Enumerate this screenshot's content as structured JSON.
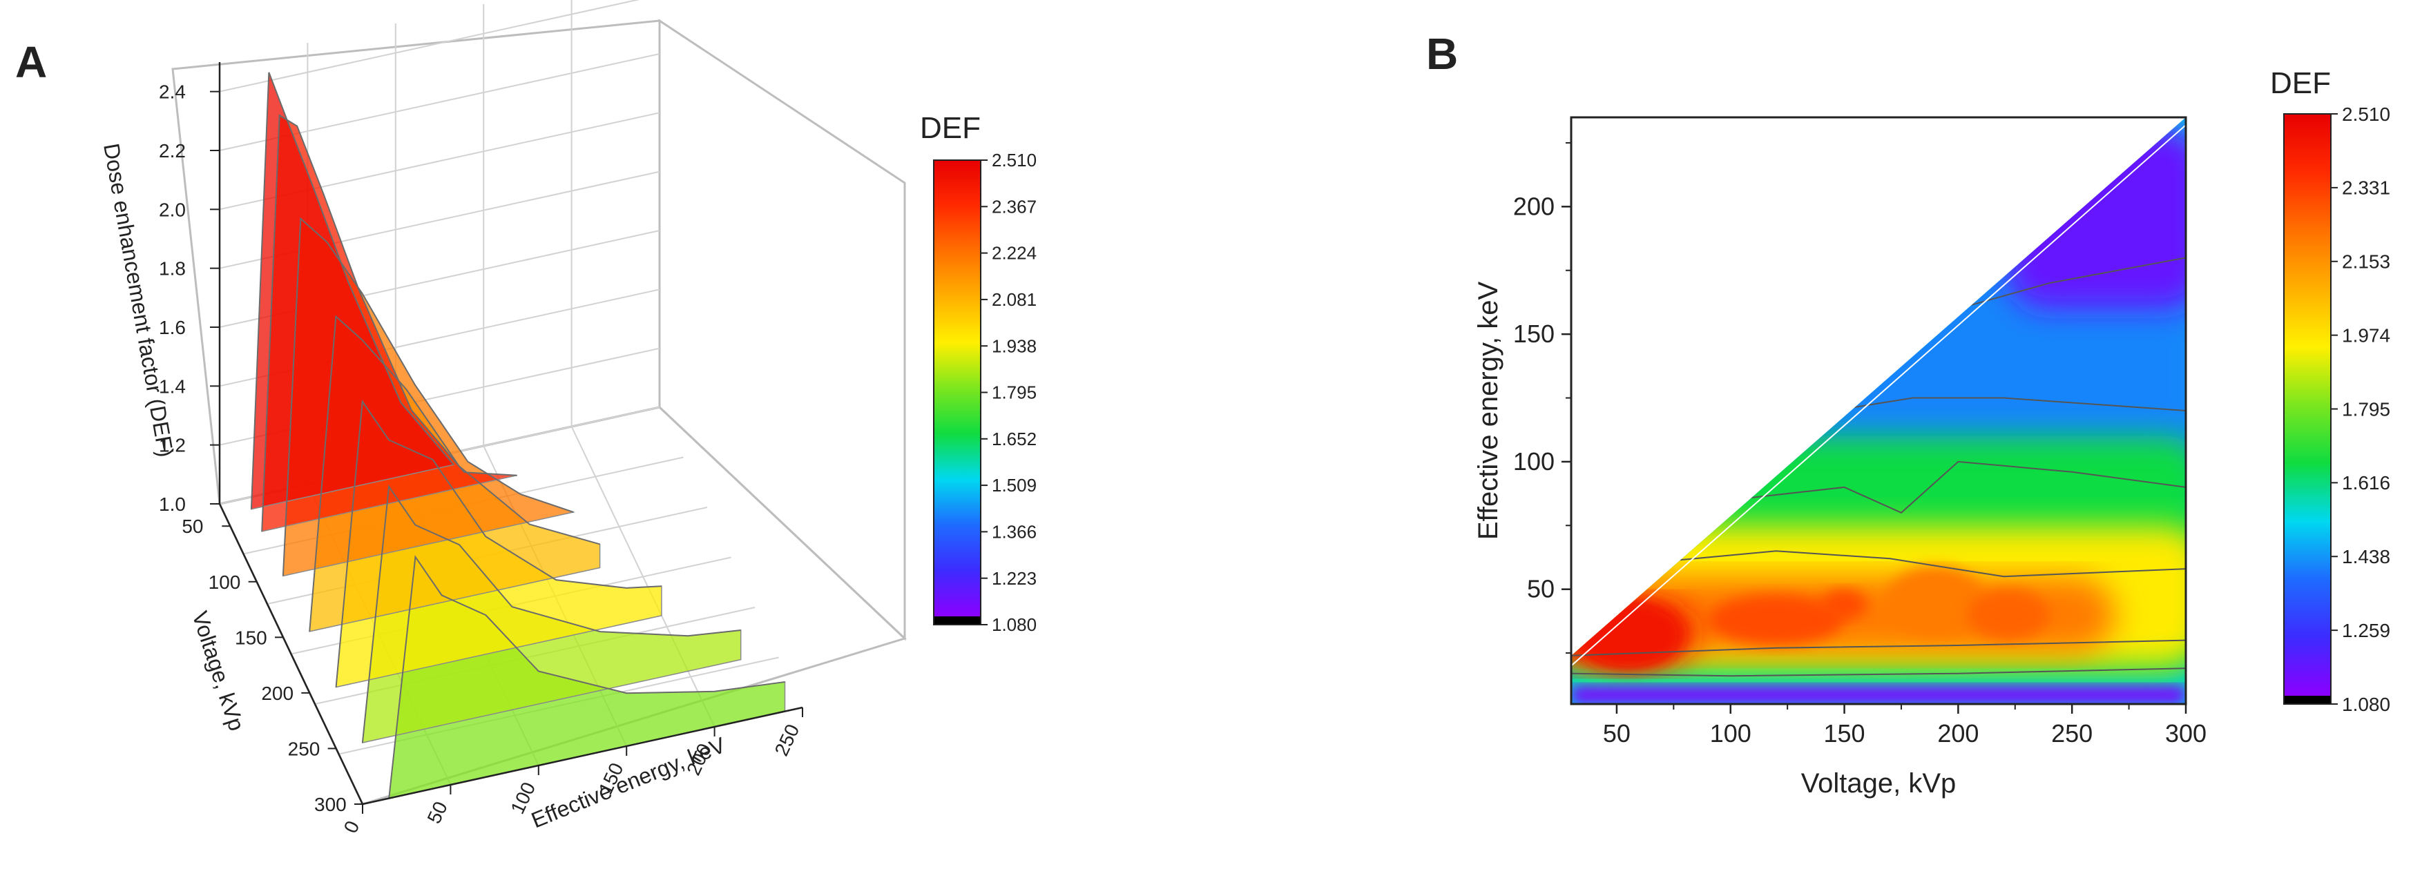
{
  "colors": {
    "text": "#222222",
    "axis": "#222222",
    "grid": "#c8c8c8",
    "contour": "#555555",
    "colormap": [
      "#8B00FF",
      "#3D2BFF",
      "#1E6BFF",
      "#00D8F0",
      "#10DC40",
      "#7CE61E",
      "#FFF000",
      "#FFB000",
      "#FF7000",
      "#FF2A00",
      "#E80000"
    ],
    "under": "#000000"
  },
  "chart_data": [
    {
      "panel": "A",
      "type": "surface3d",
      "title": "",
      "zlabel": "Dose enhancement factor (DEF)",
      "xlabel": "Effective energy, keV",
      "ylabel": "Voltage, kVp",
      "z_ticks": [
        "1.0",
        "1.2",
        "1.4",
        "1.6",
        "1.8",
        "2.0",
        "2.2",
        "2.4"
      ],
      "x_ticks": [
        "0",
        "50",
        "100",
        "150",
        "200",
        "250"
      ],
      "y_ticks": [
        "50",
        "100",
        "150",
        "200",
        "250",
        "300"
      ],
      "zlim": [
        1.0,
        2.5
      ],
      "xlim": [
        0,
        250
      ],
      "ylim": [
        30,
        300
      ],
      "surface_ridges": [
        {
          "voltage": 40,
          "energy": [
            15,
            25,
            35,
            50,
            70,
            100,
            130
          ],
          "def": [
            1.0,
            2.47,
            2.3,
            2.05,
            1.7,
            1.25,
            1.0
          ]
        },
        {
          "voltage": 60,
          "energy": [
            15,
            25,
            35,
            50,
            70,
            100,
            130,
            160
          ],
          "def": [
            1.0,
            2.4,
            2.35,
            2.1,
            1.75,
            1.3,
            1.05,
            1.0
          ]
        },
        {
          "voltage": 100,
          "energy": [
            15,
            25,
            40,
            60,
            90,
            120,
            150,
            180
          ],
          "def": [
            1.0,
            2.2,
            2.1,
            1.9,
            1.55,
            1.25,
            1.1,
            1.0
          ]
        },
        {
          "voltage": 150,
          "energy": [
            15,
            30,
            45,
            70,
            100,
            140,
            180
          ],
          "def": [
            1.0,
            2.05,
            1.95,
            1.75,
            1.45,
            1.2,
            1.08
          ]
        },
        {
          "voltage": 200,
          "energy": [
            15,
            30,
            45,
            70,
            100,
            140,
            180,
            200
          ],
          "def": [
            1.0,
            1.95,
            1.8,
            1.7,
            1.4,
            1.2,
            1.12,
            1.1
          ]
        },
        {
          "voltage": 250,
          "energy": [
            15,
            30,
            45,
            70,
            100,
            150,
            200,
            230
          ],
          "def": [
            1.0,
            1.85,
            1.7,
            1.6,
            1.35,
            1.2,
            1.12,
            1.1
          ]
        },
        {
          "voltage": 300,
          "energy": [
            15,
            30,
            45,
            70,
            100,
            150,
            200,
            240
          ],
          "def": [
            1.0,
            1.8,
            1.65,
            1.55,
            1.32,
            1.18,
            1.12,
            1.1
          ]
        }
      ],
      "colorbar": {
        "title": "DEF",
        "ticks": [
          "2.510",
          "2.367",
          "2.224",
          "2.081",
          "1.938",
          "1.795",
          "1.652",
          "1.509",
          "1.366",
          "1.223",
          "1.080"
        ],
        "min": 1.08,
        "max": 2.51
      }
    },
    {
      "panel": "B",
      "type": "contour",
      "title": "",
      "xlabel": "Voltage, kVp",
      "ylabel": "Effective energy, keV",
      "x_ticks": [
        "50",
        "100",
        "150",
        "200",
        "250",
        "300"
      ],
      "y_ticks": [
        "50",
        "100",
        "150",
        "200"
      ],
      "xlim": [
        30,
        300
      ],
      "ylim": [
        5,
        235
      ],
      "domain": "effective energy below diagonal from (30,20) to (300,232)",
      "regions": [
        {
          "level": 2.45,
          "label": "peak",
          "voltage": [
            30,
            75
          ],
          "energy": [
            20,
            45
          ]
        },
        {
          "level": 2.2,
          "label": "hot band",
          "voltage": [
            30,
            260
          ],
          "energy": [
            25,
            55
          ]
        },
        {
          "level": 1.95,
          "label": "green band",
          "voltage": [
            30,
            300
          ],
          "energy": [
            20,
            75
          ]
        },
        {
          "level": 1.65,
          "label": "cyan band",
          "voltage": [
            30,
            300
          ],
          "energy": [
            15,
            110
          ]
        },
        {
          "level": 1.4,
          "label": "blue band",
          "voltage": [
            80,
            300
          ],
          "energy": [
            90,
            180
          ]
        },
        {
          "level": 1.15,
          "label": "violet top",
          "voltage": [
            230,
            300
          ],
          "energy": [
            160,
            232
          ]
        },
        {
          "level": 1.1,
          "label": "violet bottom",
          "voltage": [
            30,
            300
          ],
          "energy": [
            5,
            12
          ]
        }
      ],
      "colorbar": {
        "title": "DEF",
        "ticks": [
          "2.510",
          "2.331",
          "2.153",
          "1.974",
          "1.795",
          "1.616",
          "1.438",
          "1.259",
          "1.080"
        ],
        "min": 1.08,
        "max": 2.51
      }
    }
  ],
  "panels": {
    "a_label": "A",
    "b_label": "B"
  }
}
